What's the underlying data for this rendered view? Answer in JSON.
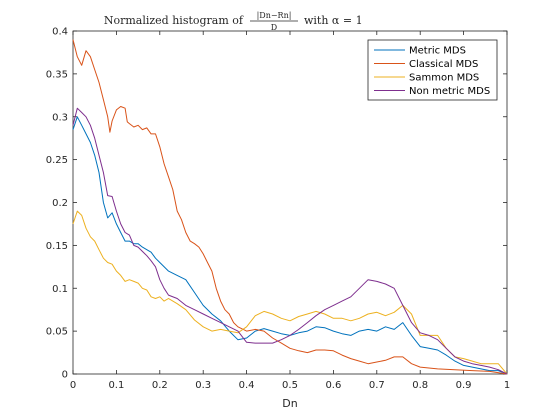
{
  "chart_data": {
    "type": "line",
    "title": {
      "prefix": "Normalized histogram of",
      "fraction_numerator": "|Dn−Rn|",
      "fraction_denominator": "D",
      "suffix": "with α = 1"
    },
    "xlabel": "Dn",
    "ylabel": "",
    "xlim": [
      0,
      1
    ],
    "ylim": [
      0,
      0.4
    ],
    "xticks": [
      "0",
      "0.1",
      "0.2",
      "0.3",
      "0.4",
      "0.5",
      "0.6",
      "0.7",
      "0.8",
      "0.9",
      "1"
    ],
    "yticks": [
      "0",
      "0.05",
      "0.1",
      "0.15",
      "0.2",
      "0.25",
      "0.3",
      "0.35",
      "0.4"
    ],
    "grid": false,
    "legend_position": "top-right",
    "series": [
      {
        "name": "Metric MDS",
        "color": "#0072BD",
        "points": [
          [
            0,
            0.285
          ],
          [
            0.01,
            0.3
          ],
          [
            0.02,
            0.29
          ],
          [
            0.04,
            0.27
          ],
          [
            0.05,
            0.255
          ],
          [
            0.06,
            0.235
          ],
          [
            0.07,
            0.2
          ],
          [
            0.08,
            0.182
          ],
          [
            0.09,
            0.188
          ],
          [
            0.1,
            0.175
          ],
          [
            0.11,
            0.165
          ],
          [
            0.12,
            0.155
          ],
          [
            0.13,
            0.155
          ],
          [
            0.14,
            0.152
          ],
          [
            0.15,
            0.152
          ],
          [
            0.16,
            0.148
          ],
          [
            0.17,
            0.145
          ],
          [
            0.18,
            0.142
          ],
          [
            0.19,
            0.135
          ],
          [
            0.2,
            0.13
          ],
          [
            0.22,
            0.12
          ],
          [
            0.24,
            0.115
          ],
          [
            0.26,
            0.11
          ],
          [
            0.28,
            0.095
          ],
          [
            0.3,
            0.08
          ],
          [
            0.32,
            0.07
          ],
          [
            0.34,
            0.062
          ],
          [
            0.36,
            0.05
          ],
          [
            0.38,
            0.04
          ],
          [
            0.4,
            0.042
          ],
          [
            0.42,
            0.05
          ],
          [
            0.44,
            0.053
          ],
          [
            0.46,
            0.05
          ],
          [
            0.48,
            0.047
          ],
          [
            0.5,
            0.045
          ],
          [
            0.52,
            0.048
          ],
          [
            0.54,
            0.05
          ],
          [
            0.56,
            0.055
          ],
          [
            0.58,
            0.054
          ],
          [
            0.6,
            0.05
          ],
          [
            0.62,
            0.047
          ],
          [
            0.64,
            0.045
          ],
          [
            0.66,
            0.05
          ],
          [
            0.68,
            0.052
          ],
          [
            0.7,
            0.05
          ],
          [
            0.72,
            0.055
          ],
          [
            0.74,
            0.052
          ],
          [
            0.76,
            0.06
          ],
          [
            0.78,
            0.045
          ],
          [
            0.8,
            0.032
          ],
          [
            0.82,
            0.03
          ],
          [
            0.84,
            0.028
          ],
          [
            0.86,
            0.022
          ],
          [
            0.88,
            0.015
          ],
          [
            0.9,
            0.01
          ],
          [
            0.92,
            0.008
          ],
          [
            0.94,
            0.006
          ],
          [
            0.96,
            0.004
          ],
          [
            0.98,
            0.004
          ],
          [
            1,
            0.0
          ]
        ]
      },
      {
        "name": "Classical MDS",
        "color": "#D95319",
        "points": [
          [
            0,
            0.39
          ],
          [
            0.01,
            0.37
          ],
          [
            0.02,
            0.36
          ],
          [
            0.03,
            0.377
          ],
          [
            0.04,
            0.37
          ],
          [
            0.05,
            0.355
          ],
          [
            0.06,
            0.34
          ],
          [
            0.07,
            0.32
          ],
          [
            0.08,
            0.3
          ],
          [
            0.085,
            0.282
          ],
          [
            0.09,
            0.295
          ],
          [
            0.1,
            0.308
          ],
          [
            0.11,
            0.312
          ],
          [
            0.12,
            0.31
          ],
          [
            0.125,
            0.294
          ],
          [
            0.13,
            0.292
          ],
          [
            0.14,
            0.288
          ],
          [
            0.15,
            0.29
          ],
          [
            0.16,
            0.285
          ],
          [
            0.17,
            0.287
          ],
          [
            0.18,
            0.28
          ],
          [
            0.19,
            0.28
          ],
          [
            0.2,
            0.265
          ],
          [
            0.21,
            0.245
          ],
          [
            0.22,
            0.23
          ],
          [
            0.23,
            0.215
          ],
          [
            0.24,
            0.19
          ],
          [
            0.25,
            0.18
          ],
          [
            0.26,
            0.165
          ],
          [
            0.27,
            0.155
          ],
          [
            0.28,
            0.152
          ],
          [
            0.29,
            0.148
          ],
          [
            0.3,
            0.14
          ],
          [
            0.31,
            0.13
          ],
          [
            0.32,
            0.12
          ],
          [
            0.33,
            0.1
          ],
          [
            0.34,
            0.085
          ],
          [
            0.35,
            0.075
          ],
          [
            0.36,
            0.07
          ],
          [
            0.37,
            0.06
          ],
          [
            0.38,
            0.055
          ],
          [
            0.4,
            0.05
          ],
          [
            0.42,
            0.052
          ],
          [
            0.44,
            0.05
          ],
          [
            0.46,
            0.042
          ],
          [
            0.48,
            0.036
          ],
          [
            0.5,
            0.03
          ],
          [
            0.52,
            0.027
          ],
          [
            0.54,
            0.025
          ],
          [
            0.56,
            0.028
          ],
          [
            0.58,
            0.028
          ],
          [
            0.6,
            0.027
          ],
          [
            0.62,
            0.022
          ],
          [
            0.64,
            0.018
          ],
          [
            0.66,
            0.015
          ],
          [
            0.68,
            0.012
          ],
          [
            0.7,
            0.014
          ],
          [
            0.72,
            0.016
          ],
          [
            0.74,
            0.02
          ],
          [
            0.76,
            0.02
          ],
          [
            0.78,
            0.012
          ],
          [
            0.8,
            0.008
          ],
          [
            0.84,
            0.006
          ],
          [
            0.88,
            0.005
          ],
          [
            0.92,
            0.004
          ],
          [
            0.96,
            0.003
          ],
          [
            1,
            0.0
          ]
        ]
      },
      {
        "name": "Sammon MDS",
        "color": "#EDB120",
        "points": [
          [
            0,
            0.175
          ],
          [
            0.01,
            0.19
          ],
          [
            0.02,
            0.185
          ],
          [
            0.03,
            0.17
          ],
          [
            0.04,
            0.16
          ],
          [
            0.05,
            0.155
          ],
          [
            0.06,
            0.145
          ],
          [
            0.07,
            0.135
          ],
          [
            0.08,
            0.13
          ],
          [
            0.09,
            0.128
          ],
          [
            0.1,
            0.12
          ],
          [
            0.11,
            0.115
          ],
          [
            0.12,
            0.108
          ],
          [
            0.13,
            0.11
          ],
          [
            0.14,
            0.108
          ],
          [
            0.15,
            0.106
          ],
          [
            0.16,
            0.1
          ],
          [
            0.17,
            0.098
          ],
          [
            0.18,
            0.09
          ],
          [
            0.19,
            0.088
          ],
          [
            0.2,
            0.09
          ],
          [
            0.21,
            0.085
          ],
          [
            0.22,
            0.088
          ],
          [
            0.23,
            0.085
          ],
          [
            0.24,
            0.082
          ],
          [
            0.26,
            0.075
          ],
          [
            0.28,
            0.063
          ],
          [
            0.3,
            0.055
          ],
          [
            0.32,
            0.05
          ],
          [
            0.34,
            0.052
          ],
          [
            0.36,
            0.05
          ],
          [
            0.38,
            0.048
          ],
          [
            0.4,
            0.055
          ],
          [
            0.42,
            0.068
          ],
          [
            0.44,
            0.073
          ],
          [
            0.46,
            0.07
          ],
          [
            0.48,
            0.065
          ],
          [
            0.5,
            0.062
          ],
          [
            0.52,
            0.067
          ],
          [
            0.54,
            0.07
          ],
          [
            0.56,
            0.073
          ],
          [
            0.58,
            0.07
          ],
          [
            0.6,
            0.065
          ],
          [
            0.62,
            0.065
          ],
          [
            0.64,
            0.062
          ],
          [
            0.66,
            0.065
          ],
          [
            0.68,
            0.07
          ],
          [
            0.7,
            0.072
          ],
          [
            0.72,
            0.068
          ],
          [
            0.74,
            0.072
          ],
          [
            0.76,
            0.08
          ],
          [
            0.78,
            0.07
          ],
          [
            0.8,
            0.045
          ],
          [
            0.82,
            0.045
          ],
          [
            0.84,
            0.045
          ],
          [
            0.86,
            0.03
          ],
          [
            0.88,
            0.02
          ],
          [
            0.9,
            0.018
          ],
          [
            0.92,
            0.015
          ],
          [
            0.94,
            0.012
          ],
          [
            0.96,
            0.012
          ],
          [
            0.98,
            0.012
          ],
          [
            1,
            0.0
          ]
        ]
      },
      {
        "name": "Non metric MDS",
        "color": "#7E2F8E",
        "points": [
          [
            0,
            0.29
          ],
          [
            0.01,
            0.31
          ],
          [
            0.02,
            0.305
          ],
          [
            0.03,
            0.3
          ],
          [
            0.04,
            0.29
          ],
          [
            0.05,
            0.275
          ],
          [
            0.06,
            0.255
          ],
          [
            0.07,
            0.235
          ],
          [
            0.08,
            0.208
          ],
          [
            0.09,
            0.207
          ],
          [
            0.1,
            0.19
          ],
          [
            0.11,
            0.175
          ],
          [
            0.12,
            0.165
          ],
          [
            0.13,
            0.162
          ],
          [
            0.14,
            0.15
          ],
          [
            0.15,
            0.148
          ],
          [
            0.16,
            0.143
          ],
          [
            0.17,
            0.138
          ],
          [
            0.18,
            0.132
          ],
          [
            0.19,
            0.125
          ],
          [
            0.2,
            0.11
          ],
          [
            0.21,
            0.1
          ],
          [
            0.22,
            0.092
          ],
          [
            0.24,
            0.088
          ],
          [
            0.26,
            0.08
          ],
          [
            0.28,
            0.075
          ],
          [
            0.3,
            0.07
          ],
          [
            0.32,
            0.065
          ],
          [
            0.34,
            0.06
          ],
          [
            0.36,
            0.055
          ],
          [
            0.38,
            0.05
          ],
          [
            0.4,
            0.037
          ],
          [
            0.42,
            0.036
          ],
          [
            0.44,
            0.036
          ],
          [
            0.46,
            0.036
          ],
          [
            0.48,
            0.04
          ],
          [
            0.5,
            0.045
          ],
          [
            0.52,
            0.052
          ],
          [
            0.54,
            0.06
          ],
          [
            0.56,
            0.068
          ],
          [
            0.58,
            0.075
          ],
          [
            0.6,
            0.08
          ],
          [
            0.62,
            0.085
          ],
          [
            0.64,
            0.09
          ],
          [
            0.66,
            0.1
          ],
          [
            0.68,
            0.11
          ],
          [
            0.7,
            0.108
          ],
          [
            0.72,
            0.105
          ],
          [
            0.74,
            0.1
          ],
          [
            0.76,
            0.08
          ],
          [
            0.78,
            0.06
          ],
          [
            0.8,
            0.048
          ],
          [
            0.82,
            0.045
          ],
          [
            0.84,
            0.04
          ],
          [
            0.86,
            0.03
          ],
          [
            0.88,
            0.02
          ],
          [
            0.9,
            0.015
          ],
          [
            0.92,
            0.012
          ],
          [
            0.94,
            0.01
          ],
          [
            0.96,
            0.008
          ],
          [
            0.98,
            0.005
          ],
          [
            1,
            0.0
          ]
        ]
      }
    ]
  }
}
